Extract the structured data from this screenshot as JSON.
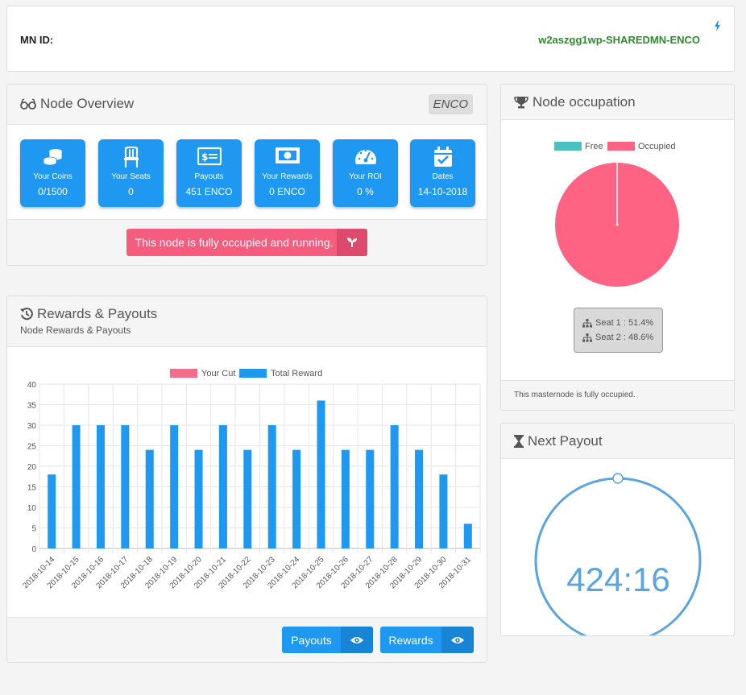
{
  "mn": {
    "label": "MN ID:",
    "value": "w2aszgg1wp-SHAREDMN-ENCO"
  },
  "overview": {
    "title": "Node Overview",
    "badge": "ENCO",
    "tiles": [
      {
        "icon": "coins-icon",
        "label": "Your Coins",
        "value": "0/1500"
      },
      {
        "icon": "chair-icon",
        "label": "Your Seats",
        "value": "0"
      },
      {
        "icon": "money-bill-icon",
        "label": "Payouts",
        "value": "451 ENCO"
      },
      {
        "icon": "banknote-icon",
        "label": "Your Rewards",
        "value": "0 ENCO"
      },
      {
        "icon": "gauge-icon",
        "label": "Your ROI",
        "value": "0 %"
      },
      {
        "icon": "calendar-check-icon",
        "label": "Dates",
        "value": "14-10-2018"
      }
    ],
    "status": "This node is fully occupied and running.",
    "status_color": "#f45d7d"
  },
  "rewards": {
    "title": "Rewards & Payouts",
    "subtitle": "Node Rewards & Payouts",
    "buttons": {
      "payouts": "Payouts",
      "rewards": "Rewards"
    }
  },
  "chart_data": [
    {
      "type": "bar",
      "categories": [
        "2018-10-14",
        "2018-10-15",
        "2018-10-16",
        "2018-10-17",
        "2018-10-18",
        "2018-10-19",
        "2018-10-20",
        "2018-10-21",
        "2018-10-22",
        "2018-10-23",
        "2018-10-24",
        "2018-10-25",
        "2018-10-26",
        "2018-10-27",
        "2018-10-28",
        "2018-10-29",
        "2018-10-30",
        "2018-10-31"
      ],
      "series": [
        {
          "name": "Your Cut",
          "color": "#f46c8c",
          "values": [
            0,
            0,
            0,
            0,
            0,
            0,
            0,
            0,
            0,
            0,
            0,
            0,
            0,
            0,
            0,
            0,
            0,
            0
          ]
        },
        {
          "name": "Total Reward",
          "color": "#1e98f0",
          "values": [
            18,
            30,
            30,
            30,
            24,
            30,
            24,
            30,
            24,
            30,
            24,
            36,
            24,
            24,
            30,
            24,
            18,
            6
          ]
        }
      ],
      "ylim": [
        0,
        40
      ],
      "yticks": [
        0,
        5,
        10,
        15,
        20,
        25,
        30,
        35,
        40
      ],
      "legend": "top",
      "grid": true
    },
    {
      "type": "pie",
      "labels": [
        "Free",
        "Occupied"
      ],
      "values": [
        0,
        100
      ],
      "colors": [
        "#4bc0c0",
        "#ff6384"
      ],
      "legend": "top"
    }
  ],
  "occupation": {
    "title": "Node occupation",
    "seats": [
      "Seat 1 : 51.4%",
      "Seat 2 : 48.6%"
    ],
    "footer": "This masternode is fully occupied."
  },
  "payout": {
    "title": "Next Payout",
    "timer": "424:16",
    "progress": 0.0
  }
}
